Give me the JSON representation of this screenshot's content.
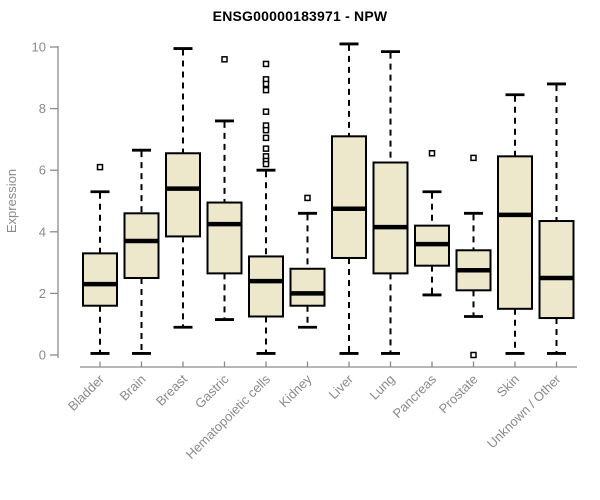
{
  "page": {
    "background": "#ffffff"
  },
  "chart_data": {
    "type": "boxplot",
    "title": "ENSG00000183971 - NPW",
    "ylabel": "Expression",
    "xlabel": "",
    "ylim": [
      0,
      10
    ],
    "y_ticks": [
      0,
      2,
      4,
      6,
      8,
      10
    ],
    "grid": false,
    "legend": "none",
    "categories": [
      "Bladder",
      "Brain",
      "Breast",
      "Gastric",
      "Hematopoietic cells",
      "Kidney",
      "Liver",
      "Lung",
      "Pancreas",
      "Prostate",
      "Skin",
      "Unknown / Other"
    ],
    "series": [
      {
        "name": "Bladder",
        "low": 0.05,
        "q1": 1.6,
        "median": 2.3,
        "q3": 3.3,
        "high": 5.3,
        "outliers": [
          6.1
        ]
      },
      {
        "name": "Brain",
        "low": 0.05,
        "q1": 2.5,
        "median": 3.7,
        "q3": 4.6,
        "high": 6.65,
        "outliers": []
      },
      {
        "name": "Breast",
        "low": 0.9,
        "q1": 3.85,
        "median": 5.4,
        "q3": 6.55,
        "high": 9.95,
        "outliers": []
      },
      {
        "name": "Gastric",
        "low": 1.15,
        "q1": 2.65,
        "median": 4.25,
        "q3": 4.95,
        "high": 7.6,
        "outliers": [
          9.6
        ]
      },
      {
        "name": "Hematopoietic cells",
        "low": 0.05,
        "q1": 1.25,
        "median": 2.4,
        "q3": 3.2,
        "high": 6.0,
        "outliers": [
          9.45,
          8.95,
          8.8,
          8.6,
          7.9,
          7.45,
          7.3,
          7.05,
          6.7,
          6.45,
          6.3,
          6.2
        ]
      },
      {
        "name": "Kidney",
        "low": 0.9,
        "q1": 1.6,
        "median": 2.0,
        "q3": 2.8,
        "high": 4.6,
        "outliers": [
          5.1
        ]
      },
      {
        "name": "Liver",
        "low": 0.05,
        "q1": 3.15,
        "median": 4.75,
        "q3": 7.1,
        "high": 10.1,
        "outliers": []
      },
      {
        "name": "Lung",
        "low": 0.05,
        "q1": 2.65,
        "median": 4.15,
        "q3": 6.25,
        "high": 9.85,
        "outliers": []
      },
      {
        "name": "Pancreas",
        "low": 1.95,
        "q1": 2.9,
        "median": 3.6,
        "q3": 4.2,
        "high": 5.3,
        "outliers": [
          6.55
        ]
      },
      {
        "name": "Prostate",
        "low": 1.25,
        "q1": 2.1,
        "median": 2.75,
        "q3": 3.4,
        "high": 4.6,
        "outliers": [
          6.4,
          0.0
        ]
      },
      {
        "name": "Skin",
        "low": 0.05,
        "q1": 1.5,
        "median": 4.55,
        "q3": 6.45,
        "high": 8.45,
        "outliers": []
      },
      {
        "name": "Unknown / Other",
        "low": 0.05,
        "q1": 1.2,
        "median": 2.5,
        "q3": 4.35,
        "high": 8.8,
        "outliers": []
      }
    ],
    "colors": {
      "box_fill": "#EDE8CC",
      "box_stroke": "#000000",
      "median": "#000000",
      "whisker": "#000000",
      "outlier_fill": "#FFFFFF",
      "axis": "#8A8A8A",
      "title": "#000000"
    }
  }
}
